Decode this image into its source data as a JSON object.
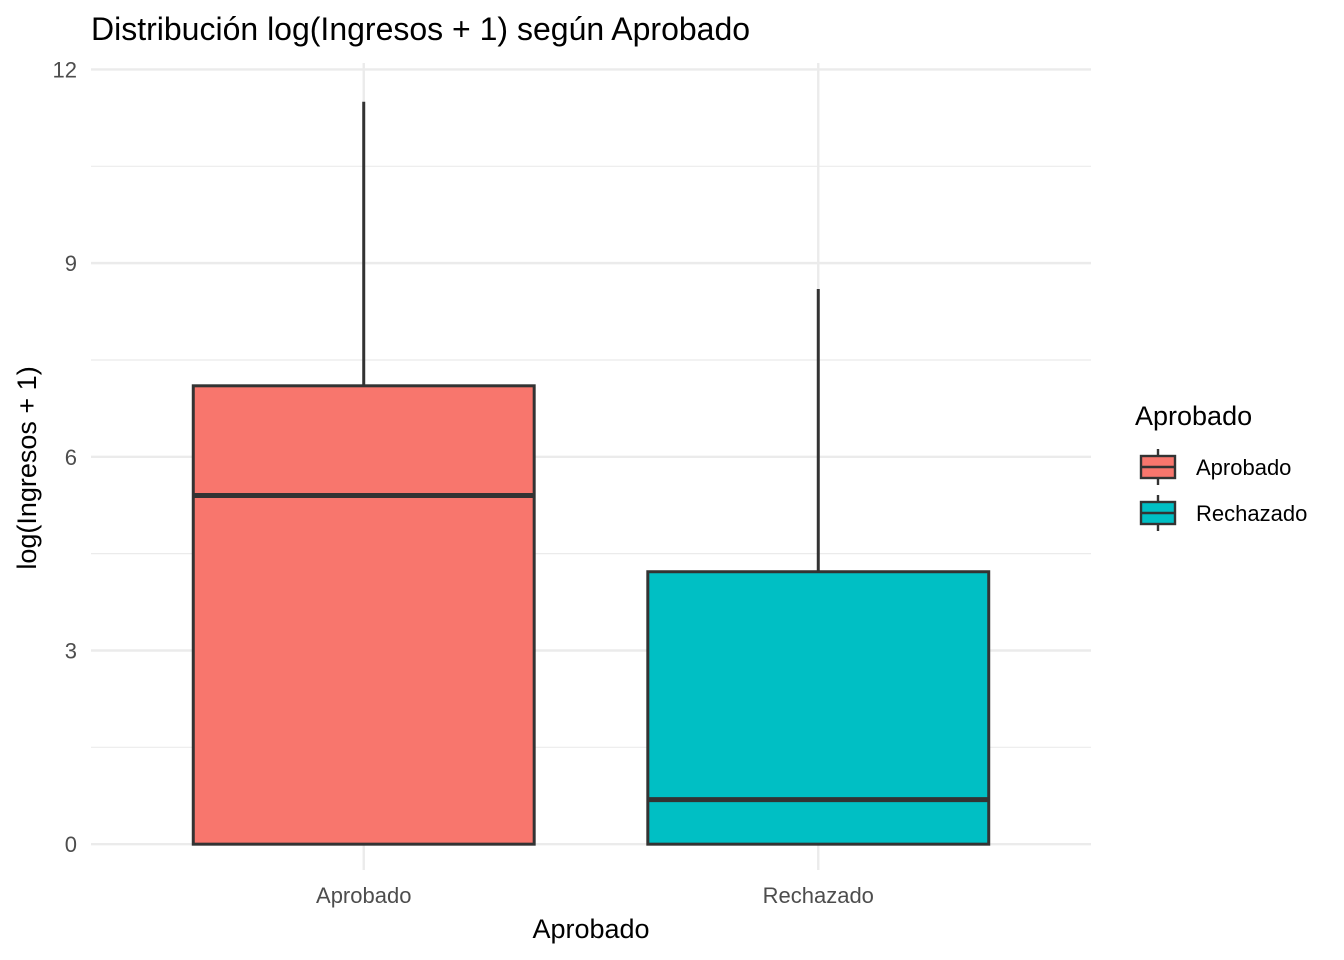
{
  "chart_data": {
    "type": "boxplot",
    "title": "Distribución log(Ingresos + 1) según Aprobado",
    "xlabel": "Aprobado",
    "ylabel": "log(Ingresos + 1)",
    "ylim": [
      -0.4,
      12.1
    ],
    "yticks": [
      0,
      3,
      6,
      9,
      12
    ],
    "yminor": [
      1.5,
      4.5,
      7.5,
      10.5
    ],
    "categories": [
      "Aprobado",
      "Rechazado"
    ],
    "boxes": [
      {
        "category": "Aprobado",
        "min": 0,
        "q1": 0,
        "median": 5.4,
        "q3": 7.1,
        "max": 11.5,
        "color": "#F8766D"
      },
      {
        "category": "Rechazado",
        "min": 0,
        "q1": 0,
        "median": 0.69,
        "q3": 4.22,
        "max": 8.6,
        "color": "#00BFC4"
      }
    ],
    "legend": {
      "title": "Aprobado",
      "position": "right",
      "entries": [
        {
          "label": "Aprobado",
          "color": "#F8766D"
        },
        {
          "label": "Rechazado",
          "color": "#00BFC4"
        }
      ]
    },
    "grid": true
  }
}
